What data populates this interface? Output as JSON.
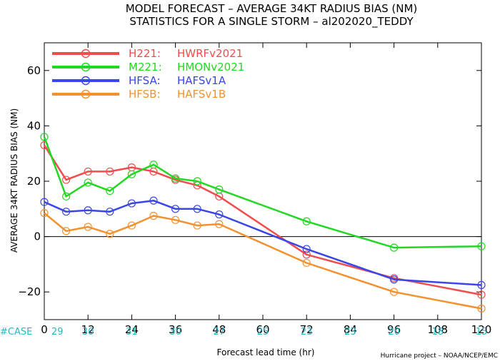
{
  "chart_data": {
    "type": "line",
    "title": "MODEL FORECAST – AVERAGE 34KT RADIUS BIAS (NM)",
    "subtitle": "STATISTICS FOR A SINGLE STORM – al202020_TEDDY",
    "xlabel": "Forecast lead time (hr)",
    "ylabel": "AVERAGE 34KT RADIUS BIAS (NM)",
    "xlim": [
      0,
      120
    ],
    "ylim": [
      -30,
      70
    ],
    "xticks": [
      0,
      12,
      24,
      36,
      48,
      60,
      72,
      84,
      96,
      108,
      120
    ],
    "yticks": [
      -20,
      0,
      20,
      40,
      60
    ],
    "zero_line": true,
    "legend_position": "top-left",
    "case_label": "#CASE",
    "case_x": [
      0,
      12,
      24,
      36,
      48,
      60,
      72,
      84,
      96,
      108,
      120
    ],
    "case_counts": [
      "29",
      "30",
      "31",
      "30",
      "27",
      "25",
      "23",
      "23",
      "20",
      "18",
      "15"
    ],
    "credit": "Hurricane project – NOAA/NCEP/EMC",
    "series": [
      {
        "name": "H221:",
        "desc": "HWRFv2021",
        "color": "#f24d4d",
        "x": [
          0,
          6,
          12,
          18,
          24,
          30,
          36,
          42,
          48,
          72,
          96,
          120
        ],
        "values": [
          33,
          20.5,
          23.5,
          23.5,
          25,
          23.5,
          20.5,
          18.5,
          14.5,
          -6.5,
          -15,
          -21
        ]
      },
      {
        "name": "M221:",
        "desc": "HMONv2021",
        "color": "#22d822",
        "x": [
          0,
          6,
          12,
          18,
          24,
          30,
          36,
          42,
          48,
          72,
          96,
          120
        ],
        "values": [
          36,
          14.5,
          19.5,
          16.5,
          22.5,
          26,
          21,
          20,
          17,
          5.5,
          -4,
          -3.5
        ]
      },
      {
        "name": "HFSA:",
        "desc": "HAFSv1A",
        "color": "#3a46e6",
        "x": [
          0,
          6,
          12,
          18,
          24,
          30,
          36,
          42,
          48,
          72,
          96,
          120
        ],
        "values": [
          12.5,
          9,
          9.5,
          9,
          12,
          13,
          10,
          10,
          8,
          -4.5,
          -15.5,
          -17.5
        ]
      },
      {
        "name": "HFSB:",
        "desc": "HAFSv1B",
        "color": "#f4912f",
        "x": [
          0,
          6,
          12,
          18,
          24,
          30,
          36,
          42,
          48,
          72,
          96,
          120
        ],
        "values": [
          8.5,
          2,
          3.5,
          1,
          4,
          7.5,
          6,
          4,
          4.5,
          -9.5,
          -20,
          -26
        ]
      }
    ]
  }
}
